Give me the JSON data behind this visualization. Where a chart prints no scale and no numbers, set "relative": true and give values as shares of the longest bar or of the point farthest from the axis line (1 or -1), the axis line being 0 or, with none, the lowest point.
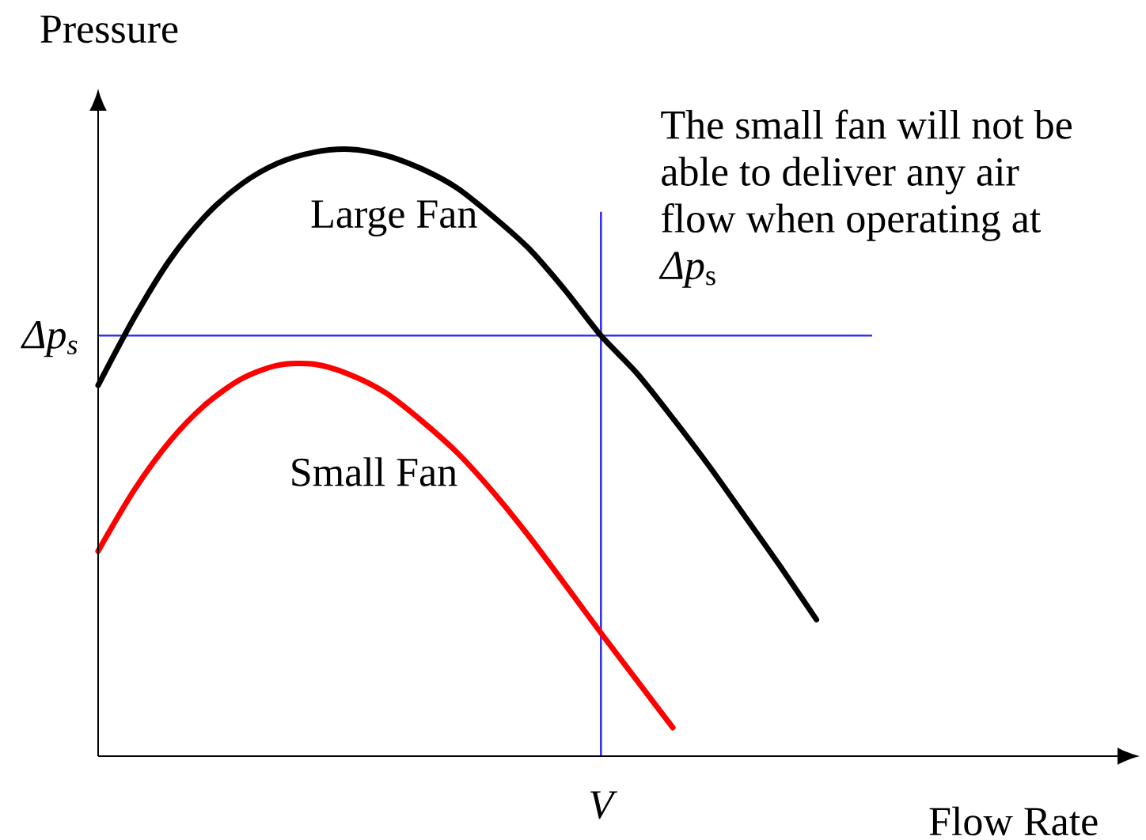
{
  "chart_data": {
    "type": "line",
    "relative": true,
    "xlabel": "Flow Rate",
    "ylabel": "Pressure",
    "categories": [
      null,
      null,
      null,
      null,
      null,
      null,
      null,
      null,
      null,
      null,
      null,
      null,
      null,
      null,
      null,
      null,
      null,
      null,
      null,
      null,
      null,
      null,
      null,
      null,
      null,
      null,
      null,
      null,
      null,
      null
    ],
    "series": [
      {
        "name": "Large Fan",
        "color": "#000000",
        "values": [
          0.611,
          0.722,
          0.818,
          0.891,
          0.943,
          0.977,
          0.995,
          1.0,
          0.99,
          0.968,
          0.936,
          0.889,
          0.836,
          0.768,
          0.693,
          0.631,
          0.557,
          0.479,
          0.396,
          0.312,
          0.225,
          null,
          null,
          null,
          null,
          null,
          null,
          null,
          null,
          null
        ]
      },
      {
        "name": "Small Fan",
        "color": "#ff0000",
        "values": [
          0.338,
          0.438,
          0.519,
          0.58,
          0.622,
          0.644,
          0.646,
          0.629,
          0.599,
          0.553,
          0.5,
          0.435,
          0.362,
          0.283,
          0.203,
          0.125,
          0.047,
          null,
          null,
          null,
          null,
          null,
          null,
          null,
          null,
          null,
          null,
          null,
          null,
          null
        ]
      }
    ],
    "ref_lines": [
      {
        "axis": "y",
        "value": 0.693,
        "label": "Δp$_{s}$",
        "color": "#3333ee"
      }
    ],
    "annotations": [
      "The small fan will not be able to deliver any air flow when operating at *Δp*$_{s}$",
      "V"
    ]
  }
}
